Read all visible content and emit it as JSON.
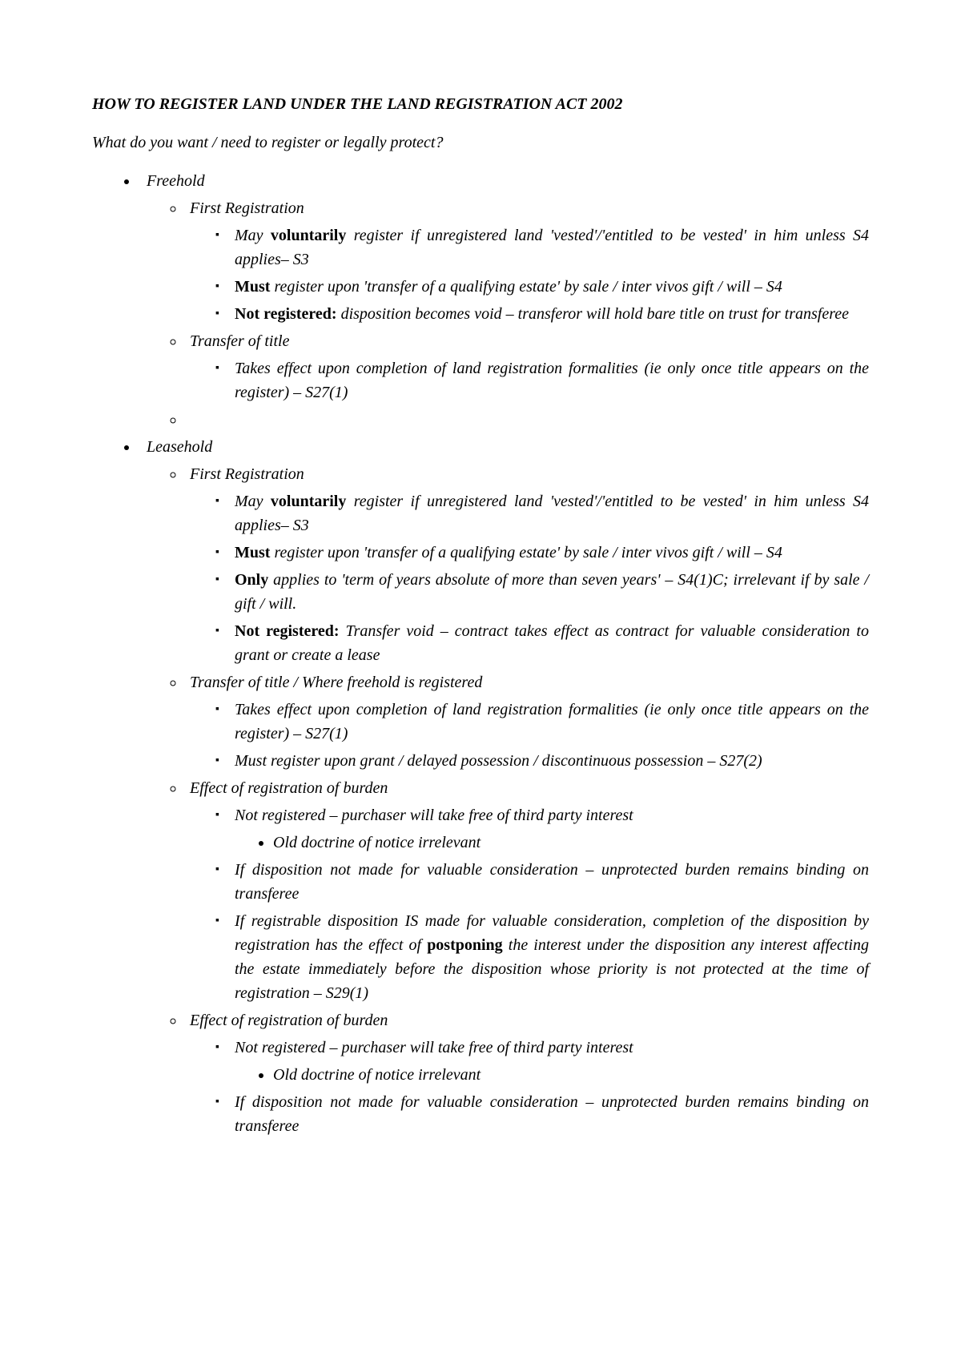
{
  "title": "HOW TO REGISTER LAND UNDER THE LAND REGISTRATION ACT 2002",
  "subtitle": "What do you want / need to register or legally protect?",
  "freehold": {
    "label": "Freehold",
    "firstReg": {
      "label": "First Registration",
      "voluntarily_pre": "May ",
      "voluntarily_bold": "voluntarily",
      "voluntarily_post": " register if unregistered land 'vested'/'entitled to be vested' in him unless S4 applies– S3",
      "must_bold": "Must",
      "must_post": " register upon 'transfer of a qualifying estate' by sale / inter vivos gift / will – S4",
      "notreg_bold": "Not registered:",
      "notreg_post": " disposition becomes void – transferor will hold bare title on trust for transferee"
    },
    "transfer": {
      "label": "Transfer of title",
      "item": "Takes effect upon completion of land registration formalities (ie only once title appears on the register) – S27(1)"
    }
  },
  "leasehold": {
    "label": "Leasehold",
    "firstReg": {
      "label": "First Registration",
      "voluntarily_pre": "May ",
      "voluntarily_bold": "voluntarily",
      "voluntarily_post": " register if unregistered land 'vested'/'entitled to be vested' in him unless S4 applies– S3",
      "must_bold": "Must",
      "must_post": " register upon 'transfer of a qualifying estate' by sale / inter vivos gift / will – S4",
      "only_bold": "Only",
      "only_post": " applies to 'term of years absolute of more than seven years' – S4(1)C; irrelevant if by sale / gift / will.",
      "notreg_bold": "Not registered:",
      "notreg_post": " Transfer void – contract takes effect as contract for valuable consideration to grant or create a lease"
    },
    "transfer": {
      "label": "Transfer of title / Where freehold is registered",
      "item1": "Takes effect upon completion of land registration formalities (ie only once title appears on the register) – S27(1)",
      "item2": "Must register upon grant / delayed possession / discontinuous possession – S27(2)"
    },
    "effect1": {
      "label": "Effect of registration of burden",
      "i1": "Not registered – purchaser will take free of third party interest",
      "i1a": "Old doctrine of notice irrelevant",
      "i2": "If disposition not made for valuable consideration – unprotected burden remains binding on transferee",
      "i3_pre": "If registrable disposition IS made for valuable consideration, completion of the disposition by registration has the effect of ",
      "i3_bold": "postponing",
      "i3_post": " the interest under the disposition any interest affecting the estate immediately before the disposition whose priority is not protected at the time of registration – S29(1)"
    },
    "effect2": {
      "label": "Effect of registration of burden",
      "i1": "Not registered – purchaser will take free of third party interest",
      "i1a": "Old doctrine of notice irrelevant",
      "i2": "If disposition not made for valuable consideration – unprotected burden remains binding on transferee"
    }
  }
}
